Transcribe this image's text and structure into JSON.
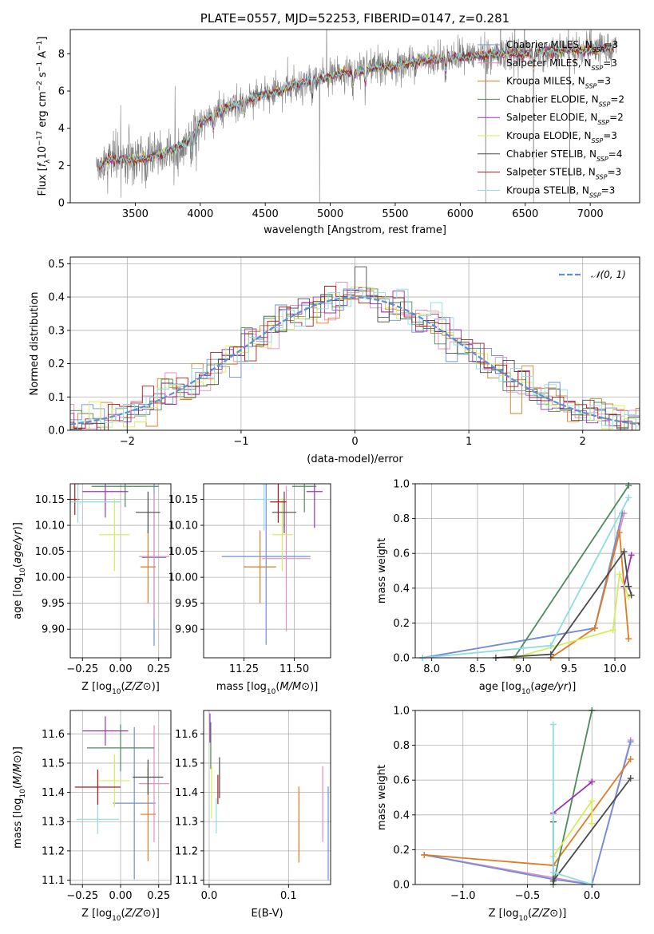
{
  "title": "PLATE=0557, MJD=52253, FIBERID=0147, z=0.281",
  "colors": {
    "chab_miles": "#6f8fd8",
    "salp_miles": "#e58dc0",
    "krou_miles": "#e07b22",
    "chab_elodie": "#4e8a5c",
    "salp_elodie": "#9b33b8",
    "krou_elodie": "#d4ee5a",
    "chab_stelib": "#4a4a4a",
    "salp_stelib": "#b01818",
    "krou_stelib": "#8ddde0",
    "data": "#808080",
    "gauss": "#5b8ed6",
    "grid": "#b0b0b0"
  },
  "chart_data": [
    {
      "id": "spectrum",
      "type": "line",
      "title": "PLATE=0557, MJD=52253, FIBERID=0147, z=0.281",
      "xlabel": "wavelength [Angstrom, rest frame]",
      "ylabel": "Flux [f_λ 10^-17 erg cm^-2 s^-1 A^-1]",
      "xlim": [
        3000,
        7380
      ],
      "ylim": [
        0,
        9.3
      ],
      "xticks": [
        3500,
        4000,
        4500,
        5000,
        5500,
        6000,
        6500,
        7000
      ],
      "yticks": [
        0,
        2,
        4,
        6,
        8
      ],
      "continuum": {
        "x": [
          3200,
          3300,
          3400,
          3500,
          3600,
          3700,
          3800,
          3900,
          4000,
          4100,
          4200,
          4300,
          4400,
          4500,
          4600,
          4700,
          4800,
          4900,
          5000,
          5100,
          5200,
          5300,
          5400,
          5500,
          5600,
          5700,
          5800,
          5900,
          6000,
          6100,
          6200,
          6300,
          6400,
          6500,
          6600,
          6700,
          6800,
          6900,
          7000,
          7100,
          7200
        ],
        "y": [
          1.9,
          2.3,
          2.3,
          2.3,
          2.4,
          2.6,
          2.9,
          3.3,
          4.3,
          4.7,
          5.1,
          5.3,
          5.6,
          5.8,
          6.0,
          6.3,
          6.5,
          6.6,
          6.8,
          7.0,
          7.0,
          7.2,
          7.3,
          7.3,
          7.5,
          7.6,
          7.7,
          7.8,
          7.8,
          7.9,
          7.9,
          8.0,
          8.0,
          8.0,
          8.1,
          8.1,
          8.2,
          8.2,
          8.2,
          8.3,
          8.3
        ]
      },
      "legend_position": "upper right",
      "legend": [
        {
          "label": "Chabrier MILES, N",
          "sub": "SSP",
          "tail": "=3",
          "color_key": "chab_miles"
        },
        {
          "label": "Salpeter MILES, N",
          "sub": "SSP",
          "tail": "=3",
          "color_key": "salp_miles"
        },
        {
          "label": "Kroupa MILES, N",
          "sub": "SSP",
          "tail": "=3",
          "color_key": "krou_miles"
        },
        {
          "label": "Chabrier ELODIE, N",
          "sub": "SSP",
          "tail": "=2",
          "color_key": "chab_elodie"
        },
        {
          "label": "Salpeter ELODIE, N",
          "sub": "SSP",
          "tail": "=2",
          "color_key": "salp_elodie"
        },
        {
          "label": "Kroupa ELODIE, N",
          "sub": "SSP",
          "tail": "=3",
          "color_key": "krou_elodie"
        },
        {
          "label": "Chabrier STELIB, N",
          "sub": "SSP",
          "tail": "=4",
          "color_key": "chab_stelib"
        },
        {
          "label": "Salpeter STELIB, N",
          "sub": "SSP",
          "tail": "=3",
          "color_key": "salp_stelib"
        },
        {
          "label": "Kroupa STELIB, N",
          "sub": "SSP",
          "tail": "=3",
          "color_key": "krou_stelib"
        }
      ]
    },
    {
      "id": "residuals",
      "type": "line",
      "xlabel": "(data-model)/error",
      "ylabel": "Normed distribution",
      "xlim": [
        -2.5,
        2.5
      ],
      "ylim": [
        0,
        0.52
      ],
      "xticks": [
        -2,
        -1,
        0,
        1,
        2
      ],
      "yticks": [
        0.0,
        0.1,
        0.2,
        0.3,
        0.4,
        0.5
      ],
      "legend_position": "upper right",
      "legend_label": "𝒩(0, 1)"
    },
    {
      "id": "age_vs_Z",
      "type": "scatter",
      "xlabel": "Z [log10(Z/Z⊙)]",
      "ylabel": "age  [log10(age/yr)]",
      "xlim": [
        -0.33,
        0.33
      ],
      "ylim": [
        9.845,
        10.18
      ],
      "xticks": [
        -0.25,
        0.0,
        0.25
      ],
      "yticks": [
        9.9,
        9.95,
        10.0,
        10.05,
        10.1,
        10.15
      ],
      "points": [
        {
          "color_key": "chab_miles",
          "x": 0.22,
          "xerr": 0.08,
          "y": 10.038,
          "yerr": 0.17
        },
        {
          "color_key": "salp_miles",
          "x": 0.22,
          "xerr": 0.1,
          "y": 10.04,
          "yerr": 0.12
        },
        {
          "color_key": "krou_miles",
          "x": 0.18,
          "xerr": 0.05,
          "y": 10.02,
          "yerr": 0.07
        },
        {
          "color_key": "chab_elodie",
          "x": 0.03,
          "xerr": 0.22,
          "y": 10.175,
          "yerr": 0.04
        },
        {
          "color_key": "salp_elodie",
          "x": -0.1,
          "xerr": 0.15,
          "y": 10.165,
          "yerr": 0.05
        },
        {
          "color_key": "krou_elodie",
          "x": -0.04,
          "xerr": 0.1,
          "y": 10.082,
          "yerr": 0.07
        },
        {
          "color_key": "chab_stelib",
          "x": 0.18,
          "xerr": 0.08,
          "y": 10.125,
          "yerr": 0.04
        },
        {
          "color_key": "salp_stelib",
          "x": -0.3,
          "xerr": 0.03,
          "y": 10.15,
          "yerr": 0.03
        },
        {
          "color_key": "krou_stelib",
          "x": -0.28,
          "xerr": 0.28,
          "y": 10.145,
          "yerr": 0.04
        }
      ]
    },
    {
      "id": "age_vs_mass",
      "type": "scatter",
      "xlabel": "mass [log10(M/M⊙)]",
      "ylabel": "",
      "xlim": [
        11.05,
        11.68
      ],
      "ylim": [
        9.845,
        10.18
      ],
      "xticks": [
        11.25,
        11.5
      ],
      "yticks": [
        9.9,
        9.95,
        10.0,
        10.05,
        10.1,
        10.15
      ],
      "points": [
        {
          "color_key": "chab_miles",
          "x": 11.36,
          "xerr": 0.22,
          "y": 10.04,
          "yerr": 0.17
        },
        {
          "color_key": "salp_miles",
          "x": 11.46,
          "xerr": 0.12,
          "y": 10.036,
          "yerr": 0.14
        },
        {
          "color_key": "krou_miles",
          "x": 11.33,
          "xerr": 0.08,
          "y": 10.02,
          "yerr": 0.07
        },
        {
          "color_key": "chab_elodie",
          "x": 11.55,
          "xerr": 0.06,
          "y": 10.175,
          "yerr": 0.05
        },
        {
          "color_key": "salp_elodie",
          "x": 11.6,
          "xerr": 0.04,
          "y": 10.165,
          "yerr": 0.07
        },
        {
          "color_key": "krou_elodie",
          "x": 11.44,
          "xerr": 0.05,
          "y": 10.082,
          "yerr": 0.07
        },
        {
          "color_key": "chab_stelib",
          "x": 11.45,
          "xerr": 0.06,
          "y": 10.125,
          "yerr": 0.04
        },
        {
          "color_key": "salp_stelib",
          "x": 11.42,
          "xerr": 0.04,
          "y": 10.145,
          "yerr": 0.04
        },
        {
          "color_key": "krou_stelib",
          "x": 11.35,
          "xerr": 0.05,
          "y": 10.15,
          "yerr": 0.06
        }
      ]
    },
    {
      "id": "weight_vs_age",
      "type": "line",
      "xlabel": "age  [log10(age/yr)]",
      "ylabel": "mass weight",
      "xlim": [
        7.82,
        10.27
      ],
      "ylim": [
        0,
        1.0
      ],
      "xticks": [
        8.0,
        8.5,
        9.0,
        9.5,
        10.0
      ],
      "yticks": [
        0.0,
        0.2,
        0.4,
        0.6,
        0.8,
        1.0
      ],
      "series": [
        {
          "color_key": "salp_miles",
          "x": [
            7.9,
            9.78,
            10.1
          ],
          "y": [
            0.0,
            0.17,
            0.83
          ]
        },
        {
          "color_key": "chab_miles",
          "x": [
            7.9,
            9.78,
            10.08
          ],
          "y": [
            0.0,
            0.17,
            0.83
          ]
        },
        {
          "color_key": "krou_miles",
          "x": [
            9.3,
            9.78,
            10.05,
            10.15
          ],
          "y": [
            0.0,
            0.17,
            0.72,
            0.11
          ]
        },
        {
          "color_key": "chab_elodie",
          "x": [
            8.9,
            10.15
          ],
          "y": [
            0.0,
            0.99
          ]
        },
        {
          "color_key": "salp_elodie",
          "x": [
            10.1,
            10.18
          ],
          "y": [
            0.41,
            0.59
          ]
        },
        {
          "color_key": "krou_elodie",
          "x": [
            8.9,
            9.98,
            10.05,
            10.15
          ],
          "y": [
            0.0,
            0.16,
            0.48,
            0.35
          ]
        },
        {
          "color_key": "chab_stelib",
          "x": [
            8.7,
            9.3,
            10.1,
            10.15,
            10.18
          ],
          "y": [
            0.0,
            0.02,
            0.61,
            0.41,
            0.36
          ]
        },
        {
          "color_key": "krou_stelib",
          "x": [
            7.9,
            9.3,
            10.15
          ],
          "y": [
            0.0,
            0.07,
            0.92
          ]
        }
      ]
    },
    {
      "id": "mass_vs_Z",
      "type": "scatter",
      "xlabel": "Z [log10(Z/Z⊙)]",
      "ylabel": "mass [log10(M/M⊙)]",
      "xlim": [
        -0.33,
        0.33
      ],
      "ylim": [
        11.085,
        11.68
      ],
      "xticks": [
        -0.25,
        0.0,
        0.25
      ],
      "yticks": [
        11.1,
        11.2,
        11.3,
        11.4,
        11.5,
        11.6
      ],
      "points": [
        {
          "color_key": "chab_miles",
          "x": 0.09,
          "xerr": 0.14,
          "y": 11.363,
          "yerr": 0.26
        },
        {
          "color_key": "salp_miles",
          "x": 0.22,
          "xerr": 0.1,
          "y": 11.43,
          "yerr": 0.2
        },
        {
          "color_key": "krou_miles",
          "x": 0.18,
          "xerr": 0.05,
          "y": 11.325,
          "yerr": 0.16
        },
        {
          "color_key": "chab_elodie",
          "x": 0.0,
          "xerr": 0.22,
          "y": 11.552,
          "yerr": 0.08
        },
        {
          "color_key": "salp_elodie",
          "x": -0.1,
          "xerr": 0.15,
          "y": 11.61,
          "yerr": 0.05
        },
        {
          "color_key": "krou_elodie",
          "x": -0.04,
          "xerr": 0.1,
          "y": 11.44,
          "yerr": 0.09
        },
        {
          "color_key": "chab_stelib",
          "x": 0.18,
          "xerr": 0.1,
          "y": 11.452,
          "yerr": 0.06
        },
        {
          "color_key": "salp_stelib",
          "x": -0.15,
          "xerr": 0.15,
          "y": 11.418,
          "yerr": 0.06
        },
        {
          "color_key": "krou_stelib",
          "x": -0.15,
          "xerr": 0.14,
          "y": 11.308,
          "yerr": 0.05
        }
      ]
    },
    {
      "id": "mass_vs_ebv",
      "type": "scatter",
      "xlabel": "E(B-V)",
      "ylabel": "",
      "xlim": [
        -0.007,
        0.153
      ],
      "ylim": [
        11.085,
        11.68
      ],
      "xticks": [
        0.0,
        0.1
      ],
      "yticks": [
        11.1,
        11.2,
        11.3,
        11.4,
        11.5,
        11.6
      ],
      "points": [
        {
          "color_key": "chab_miles",
          "x": 0.15,
          "y": 11.26,
          "yerr": 0.16
        },
        {
          "color_key": "salp_miles",
          "x": 0.143,
          "y": 11.36,
          "yerr": 0.13
        },
        {
          "color_key": "krou_miles",
          "x": 0.113,
          "y": 11.29,
          "yerr": 0.13
        },
        {
          "color_key": "chab_elodie",
          "x": 0.002,
          "y": 11.56,
          "yerr": 0.08
        },
        {
          "color_key": "salp_elodie",
          "x": 0.001,
          "y": 11.62,
          "yerr": 0.05
        },
        {
          "color_key": "krou_elodie",
          "x": 0.003,
          "y": 11.4,
          "yerr": 0.09
        },
        {
          "color_key": "chab_stelib",
          "x": 0.013,
          "y": 11.45,
          "yerr": 0.07
        },
        {
          "color_key": "salp_stelib",
          "x": 0.011,
          "y": 11.41,
          "yerr": 0.05
        },
        {
          "color_key": "krou_stelib",
          "x": 0.009,
          "y": 11.32,
          "yerr": 0.06
        }
      ]
    },
    {
      "id": "weight_vs_Z",
      "type": "line",
      "xlabel": "Z [log10(Z/Z⊙)]",
      "ylabel": "mass weight",
      "xlim": [
        -1.37,
        0.37
      ],
      "ylim": [
        0,
        1.0
      ],
      "xticks": [
        -1.0,
        -0.5,
        0.0
      ],
      "yticks": [
        0.0,
        0.2,
        0.4,
        0.6,
        0.8,
        1.0
      ],
      "series": [
        {
          "color_key": "salp_miles",
          "x": [
            -1.3,
            0.0,
            0.3
          ],
          "y": [
            0.17,
            0.0,
            0.83
          ]
        },
        {
          "color_key": "chab_miles",
          "x": [
            -1.3,
            -0.3,
            0.0,
            0.3
          ],
          "y": [
            0.17,
            0.03,
            0.0,
            0.82
          ]
        },
        {
          "color_key": "krou_miles",
          "x": [
            -1.3,
            -0.3,
            0.3
          ],
          "y": [
            0.17,
            0.11,
            0.72
          ]
        },
        {
          "color_key": "chab_elodie",
          "x": [
            -0.3,
            0.0
          ],
          "y": [
            0.0,
            1.0
          ]
        },
        {
          "color_key": "salp_elodie",
          "x": [
            -0.3,
            0.0
          ],
          "y": [
            0.41,
            0.59
          ]
        },
        {
          "color_key": "krou_elodie",
          "x": [
            -0.3,
            0.0,
            0.0
          ],
          "y": [
            0.16,
            0.48,
            0.35
          ]
        },
        {
          "color_key": "chab_stelib",
          "x": [
            -0.3,
            -0.3,
            0.3
          ],
          "y": [
            0.36,
            0.02,
            0.61
          ]
        },
        {
          "color_key": "krou_stelib",
          "x": [
            -0.3,
            -0.3,
            0.0
          ],
          "y": [
            0.92,
            0.07,
            0.0
          ]
        }
      ]
    }
  ]
}
